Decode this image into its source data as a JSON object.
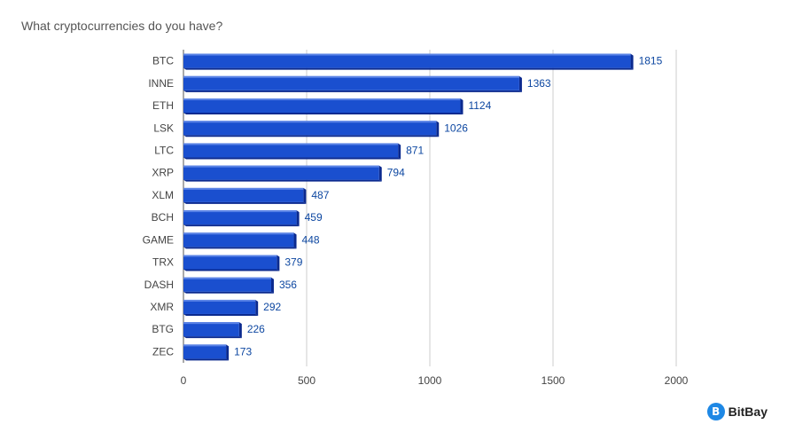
{
  "title": "What cryptocurrencies do you have?",
  "brand": {
    "name": "BitBay",
    "icon": "bitbay-logo-icon",
    "icon_glyph": "B",
    "color": "#1e88e5"
  },
  "colors": {
    "bar": "#1a4fcf",
    "bar_side": "#0b2a8f",
    "bar_top": "#5a83e6",
    "grid": "#cccccc",
    "axis_text": "#444444",
    "value_text": "#0d47a1"
  },
  "chart_data": {
    "type": "bar",
    "orientation": "horizontal",
    "categories": [
      "BTC",
      "INNE",
      "ETH",
      "LSK",
      "LTC",
      "XRP",
      "XLM",
      "BCH",
      "GAME",
      "TRX",
      "DASH",
      "XMR",
      "BTG",
      "ZEC"
    ],
    "values": [
      1815,
      1363,
      1124,
      1026,
      871,
      794,
      487,
      459,
      448,
      379,
      356,
      292,
      226,
      173
    ],
    "xlim": [
      0,
      2000
    ],
    "xticks": [
      0,
      500,
      1000,
      1500,
      2000
    ],
    "grid": true,
    "data_labels": true,
    "style": "3d"
  }
}
